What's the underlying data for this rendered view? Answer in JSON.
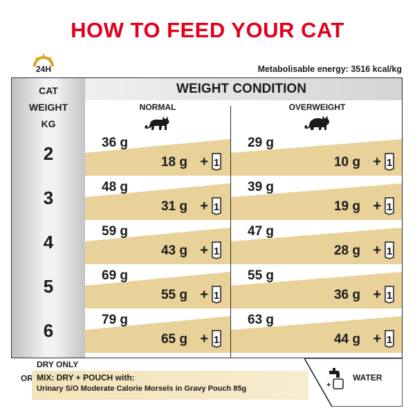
{
  "title": "HOW TO FEED YOUR CAT",
  "clock_label": "24H",
  "energy": "Metabolisable energy: 3516 kcal/kg",
  "left_header": [
    "CAT",
    "WEIGHT",
    "KG"
  ],
  "weight_condition": "WEIGHT CONDITION",
  "columns": [
    {
      "label": "NORMAL",
      "icon": "cat-normal-icon"
    },
    {
      "label": "OVERWEIGHT",
      "icon": "cat-overweight-icon"
    }
  ],
  "plus": "+",
  "pouch_count": "1",
  "rows": [
    {
      "kg": "2",
      "normal": {
        "dry": "36 g",
        "mix": "18 g"
      },
      "overweight": {
        "dry": "29 g",
        "mix": "10 g"
      }
    },
    {
      "kg": "3",
      "normal": {
        "dry": "48 g",
        "mix": "31 g"
      },
      "overweight": {
        "dry": "39 g",
        "mix": "19 g"
      }
    },
    {
      "kg": "4",
      "normal": {
        "dry": "59 g",
        "mix": "43 g"
      },
      "overweight": {
        "dry": "47 g",
        "mix": "28 g"
      }
    },
    {
      "kg": "5",
      "normal": {
        "dry": "69 g",
        "mix": "55 g"
      },
      "overweight": {
        "dry": "55 g",
        "mix": "36 g"
      }
    },
    {
      "kg": "6",
      "normal": {
        "dry": "79 g",
        "mix": "65 g"
      },
      "overweight": {
        "dry": "63 g",
        "mix": "44 g"
      }
    }
  ],
  "footer": {
    "or": "OR",
    "dry_only": "DRY ONLY",
    "mix": "MIX: DRY + POUCH with:",
    "product": "Urinary S/O Moderate Calorie Morsels in Gravy Pouch 85g",
    "water": "WATER"
  },
  "colors": {
    "title_red": "#e3001b",
    "band_gold": "#e8d29a",
    "clock_gold": "#d9a21b"
  }
}
